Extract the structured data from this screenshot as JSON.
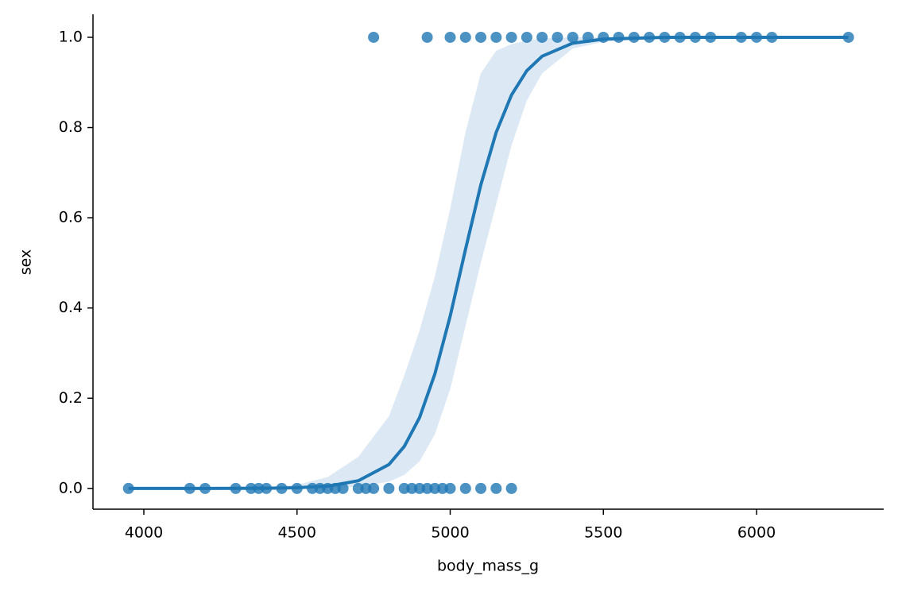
{
  "chart_data": {
    "type": "logistic_regression",
    "x_label": "body_mass_g",
    "y_label": "sex",
    "xlim": [
      3834,
      6415
    ],
    "ylim": [
      -0.046,
      1.051
    ],
    "xticks": [
      4000,
      4500,
      5000,
      5500,
      6000
    ],
    "yticks": [
      {
        "value": 0,
        "label": "0.0"
      },
      {
        "value": 0.2,
        "label": "0.2"
      },
      {
        "value": 0.4,
        "label": "0.4"
      },
      {
        "value": 0.6,
        "label": "0.6"
      },
      {
        "value": 0.8,
        "label": "0.8"
      },
      {
        "value": 1,
        "label": "1.0"
      }
    ],
    "grid": false,
    "points": {
      "color": "#1f77b4",
      "x": [
        4750,
        4925,
        5000,
        5050,
        5100,
        5150,
        5200,
        5250,
        5300,
        5350,
        5400,
        5450,
        5500,
        5550,
        5600,
        5650,
        5700,
        5750,
        5800,
        5850,
        5950,
        6000,
        6050,
        6300,
        3950,
        4150,
        4200,
        4300,
        4350,
        4375,
        4400,
        4450,
        4500,
        4550,
        4575,
        4600,
        4625,
        4650,
        4700,
        4725,
        4750,
        4800,
        4850,
        4875,
        4900,
        4925,
        4950,
        4975,
        5000,
        5050,
        5100,
        5150,
        5200
      ],
      "y": [
        1,
        1,
        1,
        1,
        1,
        1,
        1,
        1,
        1,
        1,
        1,
        1,
        1,
        1,
        1,
        1,
        1,
        1,
        1,
        1,
        1,
        1,
        1,
        1,
        0,
        0,
        0,
        0,
        0,
        0,
        0,
        0,
        0,
        0,
        0,
        0,
        0,
        0,
        0,
        0,
        0,
        0,
        0,
        0,
        0,
        0,
        0,
        0,
        0,
        0,
        0,
        0,
        0
      ]
    },
    "fit": {
      "color": "#1f77b4",
      "band_color": "#dce8f4",
      "x": [
        3950,
        4200,
        4400,
        4500,
        4600,
        4700,
        4800,
        4850,
        4900,
        4950,
        5000,
        5050,
        5100,
        5150,
        5200,
        5250,
        5300,
        5400,
        5500,
        5700,
        6300
      ],
      "y": [
        0,
        0,
        0.0005,
        0.0015,
        0.005,
        0.017,
        0.053,
        0.093,
        0.157,
        0.254,
        0.382,
        0.53,
        0.673,
        0.789,
        0.872,
        0.926,
        0.958,
        0.987,
        0.996,
        1,
        1
      ],
      "ci_upper": [
        0,
        0,
        0.002,
        0.008,
        0.025,
        0.07,
        0.16,
        0.25,
        0.35,
        0.47,
        0.62,
        0.79,
        0.92,
        0.97,
        0.985,
        0.993,
        0.997,
        1,
        1,
        1,
        1
      ],
      "ci_lower": [
        0,
        0,
        0,
        0,
        0.001,
        0.004,
        0.015,
        0.03,
        0.06,
        0.12,
        0.22,
        0.36,
        0.5,
        0.63,
        0.76,
        0.86,
        0.92,
        0.975,
        0.99,
        0.999,
        1
      ]
    }
  }
}
